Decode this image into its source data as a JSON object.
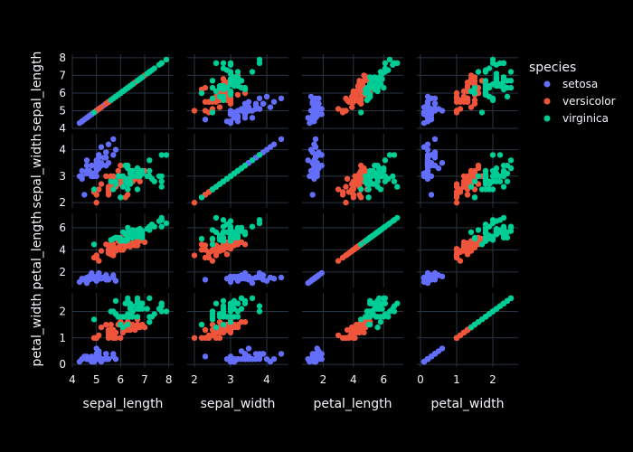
{
  "chart_data": {
    "type": "scatter",
    "subtype": "scatter-matrix",
    "dimensions": [
      "sepal_length",
      "sepal_width",
      "petal_length",
      "petal_width"
    ],
    "axis_ranges": {
      "sepal_length": [
        4.0,
        8.2
      ],
      "sepal_width": [
        1.8,
        4.6
      ],
      "petal_length": [
        0.6,
        7.3
      ],
      "petal_width": [
        -0.1,
        2.7
      ]
    },
    "ticks": {
      "sepal_length": [
        4,
        5,
        6,
        7,
        8
      ],
      "sepal_width": [
        2,
        3,
        4
      ],
      "petal_length": [
        2,
        4,
        6
      ],
      "petal_width": [
        0,
        1,
        2
      ]
    },
    "grid": true,
    "legend": {
      "title": "species",
      "placement": "top-right",
      "entries": [
        {
          "name": "setosa",
          "color": "#636efa"
        },
        {
          "name": "versicolor",
          "color": "#ef553b"
        },
        {
          "name": "virginica",
          "color": "#00cc96"
        }
      ]
    },
    "colors": {
      "background": "#000000",
      "gridline": "#283442",
      "text": "#f2f5fa"
    },
    "series": [
      {
        "name": "setosa",
        "columns": [
          "sepal_length",
          "sepal_width",
          "petal_length",
          "petal_width"
        ],
        "points": [
          [
            5.1,
            3.5,
            1.4,
            0.2
          ],
          [
            4.9,
            3.0,
            1.4,
            0.2
          ],
          [
            4.7,
            3.2,
            1.3,
            0.2
          ],
          [
            4.6,
            3.1,
            1.5,
            0.2
          ],
          [
            5.0,
            3.6,
            1.4,
            0.2
          ],
          [
            5.4,
            3.9,
            1.7,
            0.4
          ],
          [
            4.6,
            3.4,
            1.4,
            0.3
          ],
          [
            5.0,
            3.4,
            1.5,
            0.2
          ],
          [
            4.4,
            2.9,
            1.4,
            0.2
          ],
          [
            4.9,
            3.1,
            1.5,
            0.1
          ],
          [
            5.4,
            3.7,
            1.5,
            0.2
          ],
          [
            4.8,
            3.4,
            1.6,
            0.2
          ],
          [
            4.8,
            3.0,
            1.4,
            0.1
          ],
          [
            4.3,
            3.0,
            1.1,
            0.1
          ],
          [
            5.8,
            4.0,
            1.2,
            0.2
          ],
          [
            5.7,
            4.4,
            1.5,
            0.4
          ],
          [
            5.4,
            3.9,
            1.3,
            0.4
          ],
          [
            5.1,
            3.5,
            1.4,
            0.3
          ],
          [
            5.7,
            3.8,
            1.7,
            0.3
          ],
          [
            5.1,
            3.8,
            1.5,
            0.3
          ],
          [
            5.4,
            3.4,
            1.7,
            0.2
          ],
          [
            5.1,
            3.7,
            1.5,
            0.4
          ],
          [
            4.6,
            3.6,
            1.0,
            0.2
          ],
          [
            5.1,
            3.3,
            1.7,
            0.5
          ],
          [
            4.8,
            3.4,
            1.9,
            0.2
          ],
          [
            5.0,
            3.0,
            1.6,
            0.2
          ],
          [
            5.0,
            3.4,
            1.6,
            0.4
          ],
          [
            5.2,
            3.5,
            1.5,
            0.2
          ],
          [
            5.2,
            3.4,
            1.4,
            0.2
          ],
          [
            4.7,
            3.2,
            1.6,
            0.2
          ],
          [
            4.8,
            3.1,
            1.6,
            0.2
          ],
          [
            5.4,
            3.4,
            1.5,
            0.4
          ],
          [
            5.2,
            4.1,
            1.5,
            0.1
          ],
          [
            5.5,
            4.2,
            1.4,
            0.2
          ],
          [
            4.9,
            3.1,
            1.5,
            0.1
          ],
          [
            5.0,
            3.2,
            1.2,
            0.2
          ],
          [
            5.5,
            3.5,
            1.3,
            0.2
          ],
          [
            4.9,
            3.1,
            1.5,
            0.1
          ],
          [
            4.4,
            3.0,
            1.3,
            0.2
          ],
          [
            5.1,
            3.4,
            1.5,
            0.2
          ],
          [
            5.0,
            3.5,
            1.3,
            0.3
          ],
          [
            4.5,
            2.3,
            1.3,
            0.3
          ],
          [
            4.4,
            3.2,
            1.3,
            0.2
          ],
          [
            5.0,
            3.5,
            1.6,
            0.6
          ],
          [
            5.1,
            3.8,
            1.9,
            0.4
          ],
          [
            4.8,
            3.0,
            1.4,
            0.3
          ],
          [
            5.1,
            3.8,
            1.6,
            0.2
          ],
          [
            4.6,
            3.2,
            1.4,
            0.2
          ],
          [
            5.3,
            3.7,
            1.5,
            0.2
          ],
          [
            5.0,
            3.3,
            1.4,
            0.2
          ]
        ]
      },
      {
        "name": "versicolor",
        "columns": [
          "sepal_length",
          "sepal_width",
          "petal_length",
          "petal_width"
        ],
        "points": [
          [
            7.0,
            3.2,
            4.7,
            1.4
          ],
          [
            6.4,
            3.2,
            4.5,
            1.5
          ],
          [
            6.9,
            3.1,
            4.9,
            1.5
          ],
          [
            5.5,
            2.3,
            4.0,
            1.3
          ],
          [
            6.5,
            2.8,
            4.6,
            1.5
          ],
          [
            5.7,
            2.8,
            4.5,
            1.3
          ],
          [
            6.3,
            3.3,
            4.7,
            1.6
          ],
          [
            4.9,
            2.4,
            3.3,
            1.0
          ],
          [
            6.6,
            2.9,
            4.6,
            1.3
          ],
          [
            5.2,
            2.7,
            3.9,
            1.4
          ],
          [
            5.0,
            2.0,
            3.5,
            1.0
          ],
          [
            5.9,
            3.0,
            4.2,
            1.5
          ],
          [
            6.0,
            2.2,
            4.0,
            1.0
          ],
          [
            6.1,
            2.9,
            4.7,
            1.4
          ],
          [
            5.6,
            2.9,
            3.6,
            1.3
          ],
          [
            6.7,
            3.1,
            4.4,
            1.4
          ],
          [
            5.6,
            3.0,
            4.5,
            1.5
          ],
          [
            5.8,
            2.7,
            4.1,
            1.0
          ],
          [
            6.2,
            2.2,
            4.5,
            1.5
          ],
          [
            5.6,
            2.5,
            3.9,
            1.1
          ],
          [
            5.9,
            3.2,
            4.8,
            1.8
          ],
          [
            6.1,
            2.8,
            4.0,
            1.3
          ],
          [
            6.3,
            2.5,
            4.9,
            1.5
          ],
          [
            6.1,
            2.8,
            4.7,
            1.2
          ],
          [
            6.4,
            2.9,
            4.3,
            1.3
          ],
          [
            6.6,
            3.0,
            4.4,
            1.4
          ],
          [
            6.8,
            2.8,
            4.8,
            1.4
          ],
          [
            6.7,
            3.0,
            5.0,
            1.7
          ],
          [
            6.0,
            2.9,
            4.5,
            1.5
          ],
          [
            5.7,
            2.6,
            3.5,
            1.0
          ],
          [
            5.5,
            2.4,
            3.8,
            1.1
          ],
          [
            5.5,
            2.4,
            3.7,
            1.0
          ],
          [
            5.8,
            2.7,
            3.9,
            1.2
          ],
          [
            6.0,
            2.7,
            5.1,
            1.6
          ],
          [
            5.4,
            3.0,
            4.5,
            1.5
          ],
          [
            6.0,
            3.4,
            4.5,
            1.6
          ],
          [
            6.7,
            3.1,
            4.7,
            1.5
          ],
          [
            6.3,
            2.3,
            4.4,
            1.3
          ],
          [
            5.6,
            3.0,
            4.1,
            1.3
          ],
          [
            5.5,
            2.5,
            4.0,
            1.3
          ],
          [
            5.5,
            2.6,
            4.4,
            1.2
          ],
          [
            6.1,
            3.0,
            4.6,
            1.4
          ],
          [
            5.8,
            2.6,
            4.0,
            1.2
          ],
          [
            5.0,
            2.3,
            3.3,
            1.0
          ],
          [
            5.6,
            2.7,
            4.2,
            1.3
          ],
          [
            5.7,
            3.0,
            4.2,
            1.2
          ],
          [
            5.7,
            2.9,
            4.2,
            1.3
          ],
          [
            6.2,
            2.9,
            4.3,
            1.3
          ],
          [
            5.1,
            2.5,
            3.0,
            1.1
          ],
          [
            5.7,
            2.8,
            4.1,
            1.3
          ]
        ]
      },
      {
        "name": "virginica",
        "columns": [
          "sepal_length",
          "sepal_width",
          "petal_length",
          "petal_width"
        ],
        "points": [
          [
            6.3,
            3.3,
            6.0,
            2.5
          ],
          [
            5.8,
            2.7,
            5.1,
            1.9
          ],
          [
            7.1,
            3.0,
            5.9,
            2.1
          ],
          [
            6.3,
            2.9,
            5.6,
            1.8
          ],
          [
            6.5,
            3.0,
            5.8,
            2.2
          ],
          [
            7.6,
            3.0,
            6.6,
            2.1
          ],
          [
            4.9,
            2.5,
            4.5,
            1.7
          ],
          [
            7.3,
            2.9,
            6.3,
            1.8
          ],
          [
            6.7,
            2.5,
            5.8,
            1.8
          ],
          [
            7.2,
            3.6,
            6.1,
            2.5
          ],
          [
            6.5,
            3.2,
            5.1,
            2.0
          ],
          [
            6.4,
            2.7,
            5.3,
            1.9
          ],
          [
            6.8,
            3.0,
            5.5,
            2.1
          ],
          [
            5.7,
            2.5,
            5.0,
            2.0
          ],
          [
            5.8,
            2.8,
            5.1,
            2.4
          ],
          [
            6.4,
            3.2,
            5.3,
            2.3
          ],
          [
            6.5,
            3.0,
            5.5,
            1.8
          ],
          [
            7.7,
            3.8,
            6.7,
            2.2
          ],
          [
            7.7,
            2.6,
            6.9,
            2.3
          ],
          [
            6.0,
            2.2,
            5.0,
            1.5
          ],
          [
            6.9,
            3.2,
            5.7,
            2.3
          ],
          [
            5.6,
            2.8,
            4.9,
            2.0
          ],
          [
            7.7,
            2.8,
            6.7,
            2.0
          ],
          [
            6.3,
            2.7,
            4.9,
            1.8
          ],
          [
            6.7,
            3.3,
            5.7,
            2.1
          ],
          [
            7.2,
            3.2,
            6.0,
            1.8
          ],
          [
            6.2,
            2.8,
            4.8,
            1.8
          ],
          [
            6.1,
            3.0,
            4.9,
            1.8
          ],
          [
            6.4,
            2.8,
            5.6,
            2.1
          ],
          [
            7.2,
            3.0,
            5.8,
            1.6
          ],
          [
            7.4,
            2.8,
            6.1,
            1.9
          ],
          [
            7.9,
            3.8,
            6.4,
            2.0
          ],
          [
            6.4,
            2.8,
            5.6,
            2.2
          ],
          [
            6.3,
            2.8,
            5.1,
            1.5
          ],
          [
            6.1,
            2.6,
            5.6,
            1.4
          ],
          [
            7.7,
            3.0,
            6.1,
            2.3
          ],
          [
            6.3,
            3.4,
            5.6,
            2.4
          ],
          [
            6.4,
            3.1,
            5.5,
            1.8
          ],
          [
            6.0,
            3.0,
            4.8,
            1.8
          ],
          [
            6.9,
            3.1,
            5.4,
            2.1
          ],
          [
            6.7,
            3.1,
            5.6,
            2.4
          ],
          [
            6.9,
            3.1,
            5.1,
            2.3
          ],
          [
            5.8,
            2.7,
            5.1,
            1.9
          ],
          [
            6.8,
            3.2,
            5.9,
            2.3
          ],
          [
            6.7,
            3.3,
            5.7,
            2.5
          ],
          [
            6.7,
            3.0,
            5.2,
            2.3
          ],
          [
            6.3,
            2.5,
            5.0,
            1.9
          ],
          [
            6.5,
            3.0,
            5.2,
            2.0
          ],
          [
            6.2,
            3.4,
            5.4,
            2.3
          ],
          [
            5.9,
            3.0,
            5.1,
            1.8
          ]
        ]
      }
    ]
  }
}
